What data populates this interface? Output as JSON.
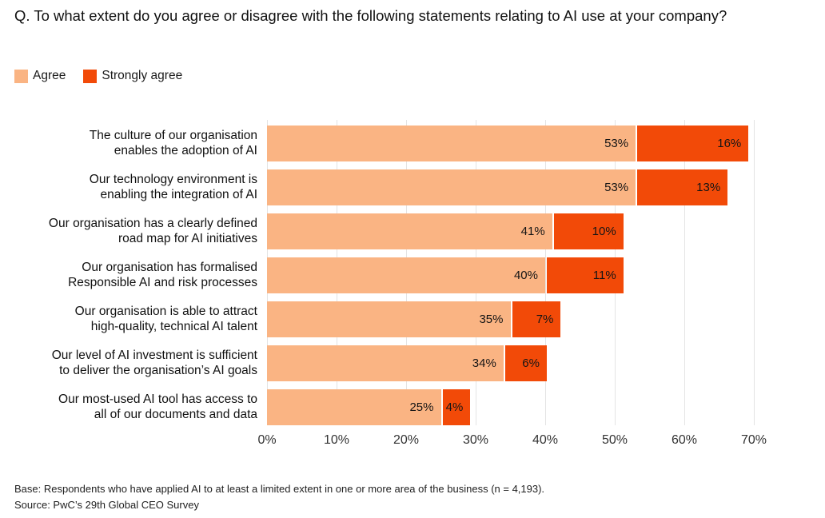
{
  "title": "Q. To what extent do you agree or disagree with the following statements relating to AI use at your company?",
  "legend": [
    {
      "label": "Agree",
      "color": "#FAB483"
    },
    {
      "label": "Strongly agree",
      "color": "#F24A08"
    }
  ],
  "chart_data": {
    "type": "bar",
    "orientation": "horizontal",
    "stacked": true,
    "grid": "vertical",
    "legend_position": "top-left",
    "xlim": [
      0,
      70
    ],
    "x_ticks": [
      {
        "value": 0,
        "label": "0%"
      },
      {
        "value": 10,
        "label": "10%"
      },
      {
        "value": 20,
        "label": "20%"
      },
      {
        "value": 30,
        "label": "30%"
      },
      {
        "value": 40,
        "label": "40%"
      },
      {
        "value": 50,
        "label": "50%"
      },
      {
        "value": 60,
        "label": "60%"
      },
      {
        "value": 70,
        "label": "70%"
      }
    ],
    "categories": [
      "The culture of our organisation\nenables the adoption of AI",
      "Our technology environment is\nenabling the integration of AI",
      "Our organisation has a clearly defined\nroad map for AI initiatives",
      "Our organisation has formalised\nResponsible AI and risk processes",
      "Our organisation is able to attract\nhigh-quality, technical AI talent",
      "Our level of AI investment is sufficient\nto deliver the organisation’s AI goals",
      "Our most-used AI tool has access to\nall of our documents and data"
    ],
    "series": [
      {
        "name": "Agree",
        "color": "#FAB483",
        "values": [
          53,
          53,
          41,
          40,
          35,
          34,
          25
        ]
      },
      {
        "name": "Strongly agree",
        "color": "#F24A08",
        "values": [
          16,
          13,
          10,
          11,
          7,
          6,
          4
        ]
      }
    ],
    "value_label_format": "{v}%"
  },
  "footer": {
    "base": "Base: Respondents who have applied AI to at least a limited extent in one or more area of the business (n = 4,193).",
    "source": "Source: PwC’s 29th Global CEO Survey"
  }
}
